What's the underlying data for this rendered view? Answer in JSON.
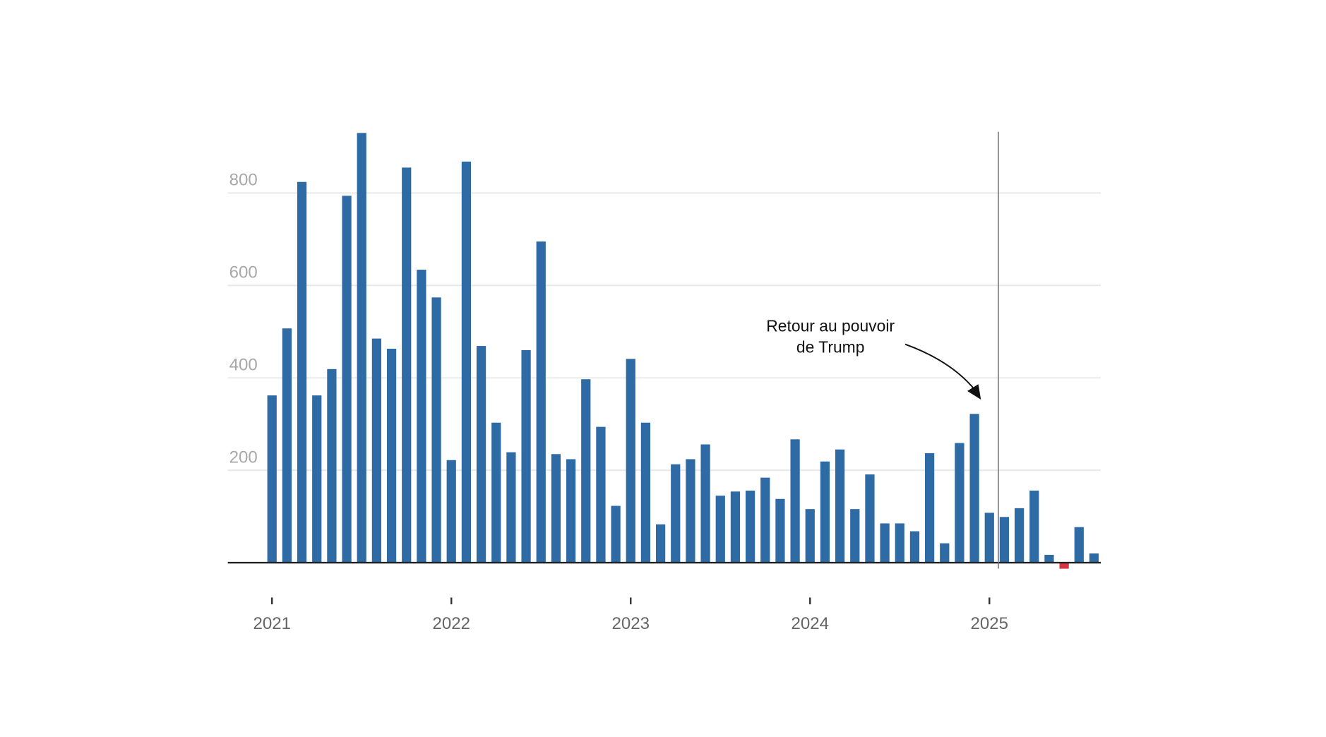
{
  "chart_data": {
    "type": "bar",
    "title": "",
    "xlabel": "",
    "ylabel": "",
    "ylim": [
      -20,
      940
    ],
    "grid": true,
    "yticks": [
      200,
      400,
      600,
      800
    ],
    "ytick_labels": [
      "200",
      "400",
      "600",
      "800"
    ],
    "xtick_labels": [
      "2021",
      "2022",
      "2023",
      "2024",
      "2025"
    ],
    "start": "2021-01",
    "frequency": "monthly",
    "values": [
      362,
      507,
      824,
      362,
      419,
      794,
      930,
      485,
      463,
      855,
      634,
      574,
      222,
      868,
      469,
      303,
      239,
      460,
      695,
      235,
      224,
      397,
      294,
      123,
      441,
      303,
      83,
      213,
      224,
      256,
      145,
      154,
      156,
      184,
      138,
      267,
      116,
      219,
      245,
      116,
      191,
      85,
      85,
      68,
      237,
      42,
      259,
      322,
      108,
      99,
      118,
      156,
      17,
      -13,
      77,
      20
    ],
    "colors": {
      "positive": "#2e6ba4",
      "negative": "#d7343f",
      "grid": "#e6e6e6",
      "axis": "#222222",
      "marker_line": "#777777"
    },
    "annotation": {
      "lines": [
        "Retour au pouvoir",
        "de Trump"
      ],
      "marker_month_index": 48.6
    }
  }
}
